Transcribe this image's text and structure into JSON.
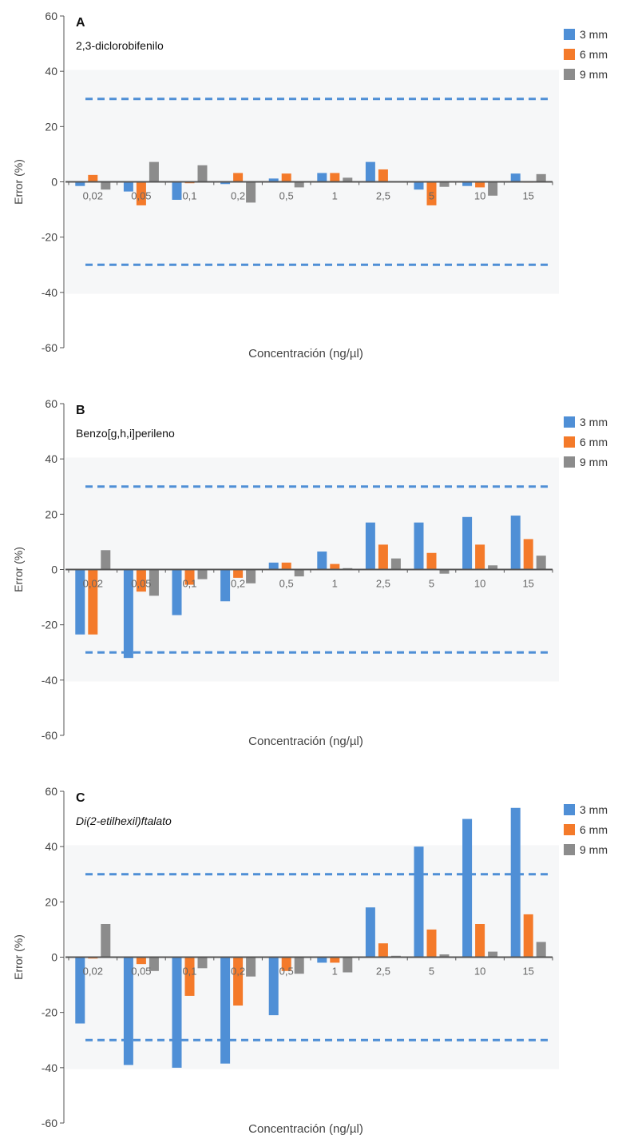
{
  "figure": {
    "colors": {
      "3mm": "#4f8fd6",
      "6mm": "#f47a2a",
      "9mm": "#8c8c8c",
      "limit_line": "#4f8fd6",
      "plot_bg": "#f6f7f8"
    }
  },
  "chart_data": [
    {
      "type": "bar",
      "panel_letter": "A",
      "compound": "2,3-diclorobifenilo",
      "compound_italic": false,
      "xlabel": "Concentración (ng/µl)",
      "ylabel": "Error (%)",
      "ylim": [
        -60,
        60
      ],
      "yticks": [
        60,
        40,
        20,
        0,
        -20,
        -40,
        -60
      ],
      "categories": [
        "0,02",
        "0,05",
        "0,1",
        "0,2",
        "0,5",
        "1",
        "2,5",
        "5",
        "10",
        "15"
      ],
      "series": [
        {
          "name": "3 mm",
          "color": "#4f8fd6",
          "values": [
            -1.5,
            -3.5,
            -6.5,
            -0.8,
            1.2,
            3.2,
            7.2,
            -2.8,
            -1.5,
            3.0
          ]
        },
        {
          "name": "6 mm",
          "color": "#f47a2a",
          "values": [
            2.5,
            -8.5,
            -0.5,
            3.2,
            3.0,
            3.2,
            4.5,
            -8.5,
            -2.0,
            -0.3
          ]
        },
        {
          "name": "9 mm",
          "color": "#8c8c8c",
          "values": [
            -2.8,
            7.2,
            6.0,
            -7.5,
            -2.0,
            1.5,
            0.2,
            -1.8,
            -5.0,
            2.8
          ]
        }
      ],
      "reference_lines": [
        30,
        -30
      ],
      "legend": "top-right"
    },
    {
      "type": "bar",
      "panel_letter": "B",
      "compound": "Benzo[g,h,i]perileno",
      "compound_italic": false,
      "xlabel": "Concentración (ng/µl)",
      "ylabel": "Error (%)",
      "ylim": [
        -60,
        60
      ],
      "yticks": [
        60,
        40,
        20,
        0,
        -20,
        -40,
        -60
      ],
      "categories": [
        "0,02",
        "0,05",
        "0,1",
        "0,2",
        "0,5",
        "1",
        "2,5",
        "5",
        "10",
        "15"
      ],
      "series": [
        {
          "name": "3 mm",
          "color": "#4f8fd6",
          "values": [
            -23.5,
            -32,
            -16.5,
            -11.5,
            2.5,
            6.5,
            17,
            17,
            19,
            19.5
          ]
        },
        {
          "name": "6 mm",
          "color": "#f47a2a",
          "values": [
            -23.5,
            -8,
            -5.5,
            -3,
            2.5,
            2.0,
            9,
            6,
            9,
            11
          ]
        },
        {
          "name": "9 mm",
          "color": "#8c8c8c",
          "values": [
            7,
            -9.5,
            -3.5,
            -5,
            -2.5,
            0.5,
            4,
            -1.5,
            1.5,
            5
          ]
        }
      ],
      "reference_lines": [
        30,
        -30
      ],
      "legend": "top-right"
    },
    {
      "type": "bar",
      "panel_letter": "C",
      "compound": "Di(2-etilhexil)ftalato",
      "compound_italic": true,
      "xlabel": "Concentración (ng/µl)",
      "ylabel": "Error (%)",
      "ylim": [
        -60,
        60
      ],
      "yticks": [
        60,
        40,
        20,
        0,
        -20,
        -40,
        -60
      ],
      "categories": [
        "0,02",
        "0,05",
        "0,1",
        "0,2",
        "0,5",
        "1",
        "2,5",
        "5",
        "10",
        "15"
      ],
      "series": [
        {
          "name": "3 mm",
          "color": "#4f8fd6",
          "values": [
            -24,
            -39,
            -40,
            -38.5,
            -21,
            -2,
            18,
            40,
            50,
            54
          ]
        },
        {
          "name": "6 mm",
          "color": "#f47a2a",
          "values": [
            -0.5,
            -2.5,
            -14,
            -17.5,
            -5,
            -2,
            5,
            10,
            12,
            15.5
          ]
        },
        {
          "name": "9 mm",
          "color": "#8c8c8c",
          "values": [
            12,
            -5,
            -4,
            -7,
            -6,
            -5.5,
            0.5,
            1,
            2,
            5.5
          ]
        }
      ],
      "reference_lines": [
        30,
        -30
      ],
      "legend": "top-right"
    }
  ]
}
